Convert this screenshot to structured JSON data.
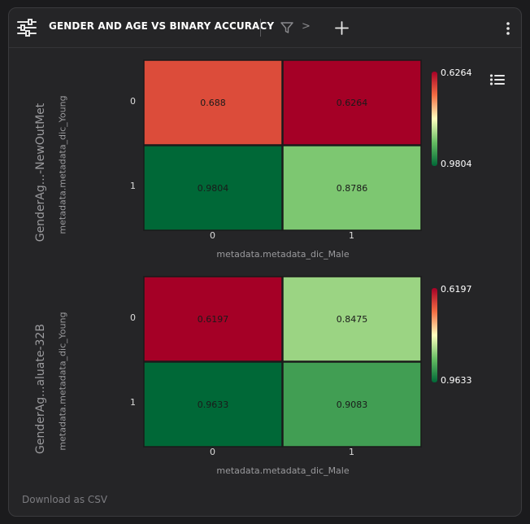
{
  "header": {
    "title": "GENDER AND AGE VS BINARY ACCURACY",
    "chevron": ">"
  },
  "icons": {
    "sliders": "sliders-icon",
    "filter": "filter-icon",
    "add": "plus-icon",
    "menu": "kebab-menu-icon",
    "legend": "list-icon"
  },
  "footer": {
    "download_label": "Download as CSV"
  },
  "colors": {
    "panel_bg": "#252527",
    "cell_border": "#1a1a1a",
    "scale_high": "#a50026",
    "scale_mid": "#ffffbf",
    "scale_low": "#006837"
  },
  "chart_data": [
    {
      "type": "heatmap",
      "title": "",
      "row_group_label": "GenderAg...-NewOutMet",
      "xlabel": "metadata.metadata_dic_Male",
      "ylabel": "metadata.metadata_dic_Young",
      "x_categories": [
        "0",
        "1"
      ],
      "y_categories": [
        "0",
        "1"
      ],
      "values": [
        [
          0.688,
          0.6264
        ],
        [
          0.9804,
          0.8786
        ]
      ],
      "colorbar": {
        "top_label": "0.6264",
        "bottom_label": "0.9804",
        "min": 0.6264,
        "max": 0.9804,
        "reversed": true
      }
    },
    {
      "type": "heatmap",
      "title": "",
      "row_group_label": "GenderAg...aluate-32B",
      "xlabel": "metadata.metadata_dic_Male",
      "ylabel": "metadata.metadata_dic_Young",
      "x_categories": [
        "0",
        "1"
      ],
      "y_categories": [
        "0",
        "1"
      ],
      "values": [
        [
          0.6197,
          0.8475
        ],
        [
          0.9633,
          0.9083
        ]
      ],
      "colorbar": {
        "top_label": "0.6197",
        "bottom_label": "0.9633",
        "min": 0.6197,
        "max": 0.9633,
        "reversed": true
      }
    }
  ]
}
